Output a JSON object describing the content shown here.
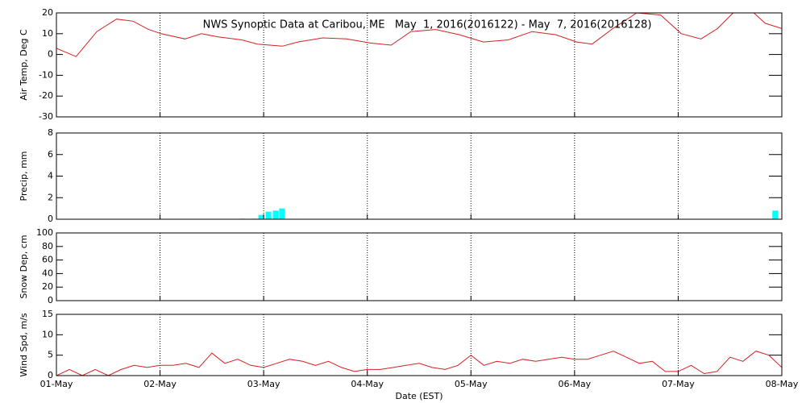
{
  "chart_data": [
    {
      "type": "line",
      "title": "NWS Synoptic Data at Caribou, ME   May  1, 2016(2016122) - May  7, 2016(2016128)",
      "ylabel": "Air Temp, Deg C",
      "color": "#d42020",
      "ylim": [
        -30,
        20
      ],
      "yticks": [
        -30,
        -20,
        -10,
        0,
        10,
        20
      ],
      "x": [
        0,
        0.19,
        0.39,
        0.58,
        0.74,
        0.89,
        1.01,
        1.24,
        1.4,
        1.56,
        1.79,
        1.94,
        2.18,
        2.33,
        2.57,
        2.8,
        3.03,
        3.23,
        3.42,
        3.66,
        3.89,
        4.12,
        4.36,
        4.59,
        4.82,
        5.02,
        5.17,
        5.37,
        5.6,
        5.83,
        6.03,
        6.22,
        6.38,
        6.53,
        6.73,
        6.84,
        7
      ],
      "values": [
        3,
        -1,
        11,
        17,
        16,
        12,
        10,
        7.5,
        10,
        8.5,
        7,
        5,
        4,
        6,
        8,
        7.5,
        5.5,
        4.5,
        11,
        12,
        9.5,
        6,
        7,
        11,
        9.5,
        6,
        5,
        12.5,
        20,
        19,
        10,
        7.5,
        12.5,
        20,
        20,
        15,
        12.5
      ]
    },
    {
      "type": "bar",
      "ylabel": "Precip, mm",
      "color": "#00ffff",
      "ylim": [
        0,
        8
      ],
      "yticks": [
        0,
        2,
        4,
        6,
        8
      ],
      "x": [
        1.8,
        1.91,
        1.98,
        2.05,
        2.12,
        2.18,
        6.94
      ],
      "values": [
        0.05,
        0.05,
        0.4,
        0.7,
        0.8,
        1.0,
        0.8
      ]
    },
    {
      "type": "line",
      "ylabel": "Snow Dep, cm",
      "ylim": [
        0,
        100
      ],
      "yticks": [
        0,
        20,
        40,
        60,
        80,
        100
      ]
    },
    {
      "type": "line",
      "ylabel": "Wind Spd, m/s",
      "color": "#d42020",
      "ylim": [
        0,
        15
      ],
      "yticks": [
        0,
        5,
        10,
        15
      ],
      "xlabel": "Date (EST)",
      "xlim": [
        0,
        7
      ],
      "xticks": [
        {
          "value": 0,
          "label": "01-May"
        },
        {
          "value": 1,
          "label": "02-May"
        },
        {
          "value": 2,
          "label": "03-May"
        },
        {
          "value": 3,
          "label": "04-May"
        },
        {
          "value": 4,
          "label": "05-May"
        },
        {
          "value": 5,
          "label": "06-May"
        },
        {
          "value": 6,
          "label": "07-May"
        },
        {
          "value": 7,
          "label": "08-May"
        }
      ],
      "x": [
        0,
        0.125,
        0.25,
        0.375,
        0.5,
        0.625,
        0.75,
        0.875,
        1,
        1.125,
        1.25,
        1.375,
        1.5,
        1.625,
        1.75,
        1.875,
        2,
        2.125,
        2.25,
        2.375,
        2.5,
        2.625,
        2.75,
        2.875,
        3,
        3.125,
        3.25,
        3.375,
        3.5,
        3.625,
        3.75,
        3.875,
        4,
        4.125,
        4.25,
        4.375,
        4.5,
        4.625,
        4.75,
        4.875,
        5,
        5.125,
        5.25,
        5.375,
        5.5,
        5.625,
        5.75,
        5.875,
        6,
        6.125,
        6.25,
        6.375,
        6.5,
        6.625,
        6.75,
        6.875,
        7
      ],
      "values": [
        0,
        1.5,
        0,
        1.5,
        0,
        1.5,
        2.5,
        2,
        2.5,
        2.5,
        3,
        2,
        5.5,
        3,
        4,
        2.5,
        2,
        3,
        4,
        3.5,
        2.5,
        3.5,
        2,
        1,
        1.5,
        1.5,
        2,
        2.5,
        3,
        2,
        1.5,
        2.5,
        5,
        2.5,
        3.5,
        3,
        4,
        3.5,
        4,
        4.5,
        4,
        4,
        5,
        6,
        4.5,
        3,
        3.5,
        1,
        1,
        2.5,
        0.5,
        1,
        4.5,
        3.5,
        6,
        5,
        2
      ]
    }
  ]
}
